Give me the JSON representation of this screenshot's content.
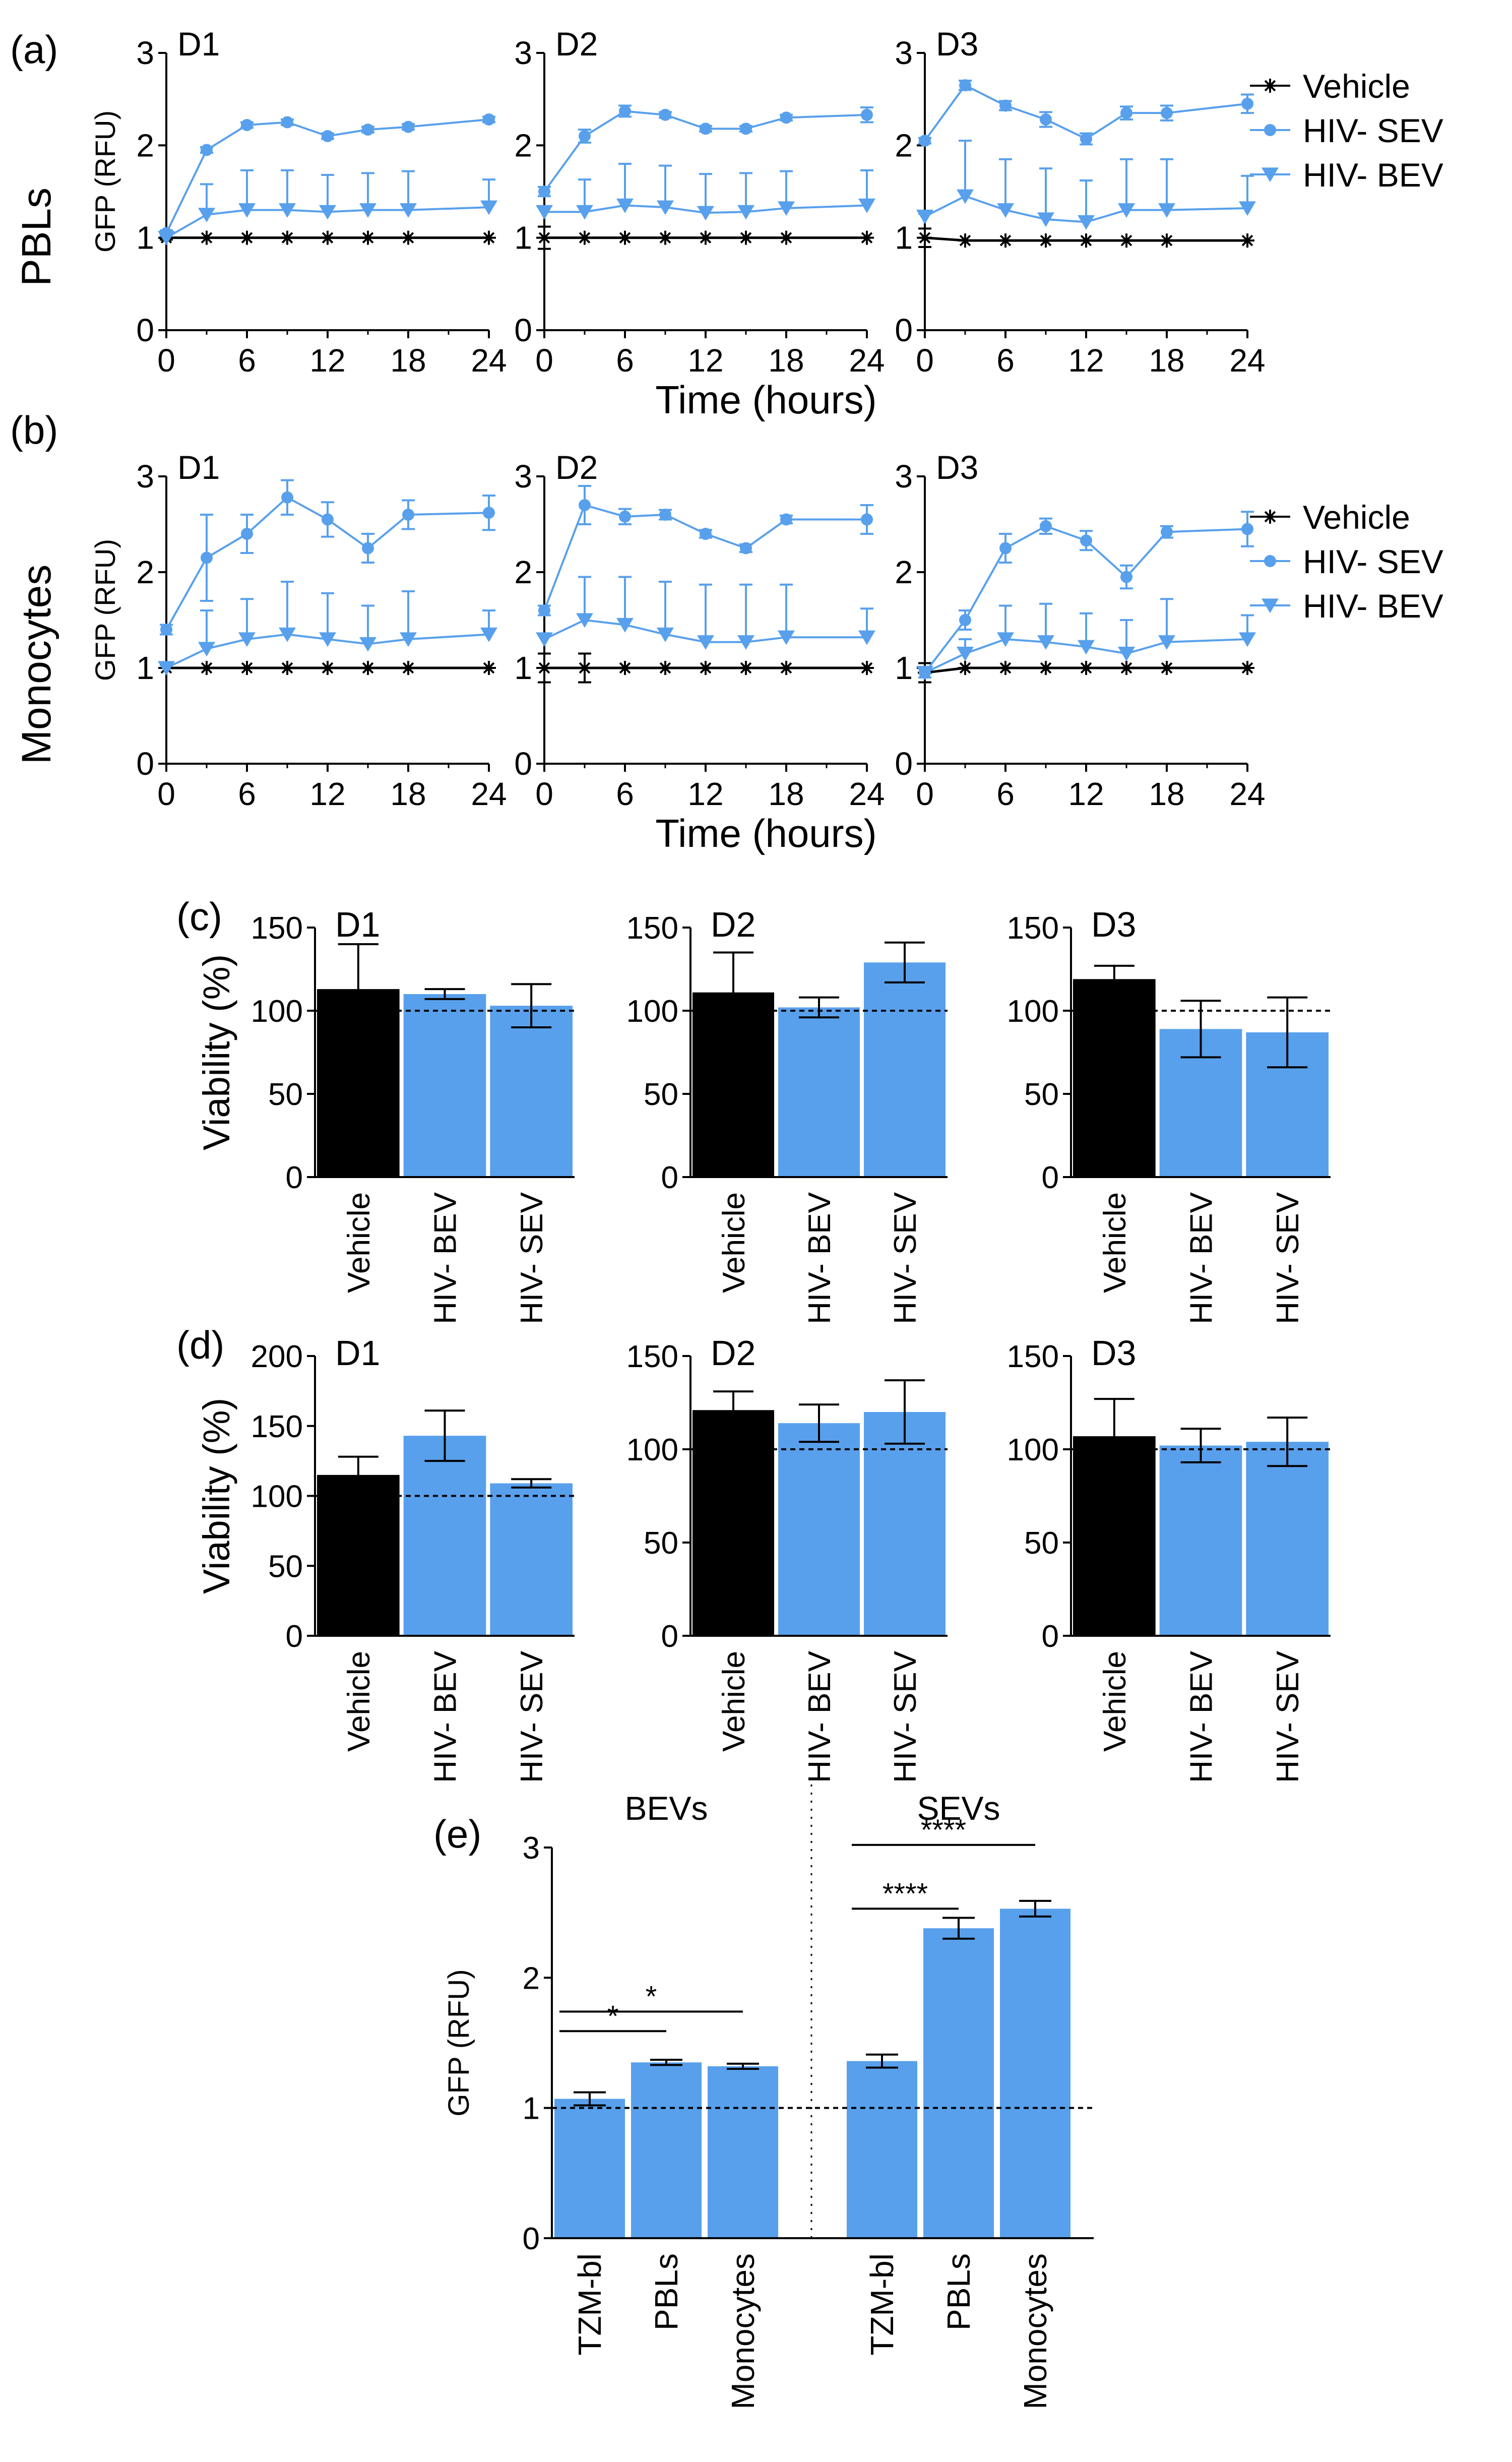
{
  "colors": {
    "vehicle": "#000000",
    "sev": "#58a0ec",
    "bev": "#58a0ec",
    "bar_vehicle": "#000000",
    "bar_ev": "#58a0ec"
  },
  "panels": {
    "a": {
      "letter": "(a)",
      "row_label": "PBLs"
    },
    "b": {
      "letter": "(b)",
      "row_label": "Monocytes"
    },
    "c": {
      "letter": "(c)"
    },
    "d": {
      "letter": "(d)"
    },
    "e": {
      "letter": "(e)"
    }
  },
  "legend": [
    "Vehicle",
    "HIV- SEV",
    "HIV- BEV"
  ],
  "chart_data": [
    {
      "id": "a",
      "type": "line",
      "row_label": "PBLs",
      "ylabel": "GFP (RFU)",
      "xlabel": "Time (hours)",
      "ylim": [
        0,
        3
      ],
      "yticks": [
        0,
        1,
        2,
        3
      ],
      "xlim": [
        0,
        24
      ],
      "xticks": [
        0,
        6,
        12,
        18,
        24
      ],
      "legend": "right",
      "subplots": [
        {
          "title": "D1",
          "series": [
            {
              "name": "Vehicle",
              "marker": "asterisk",
              "x": [
                0,
                3,
                6,
                9,
                12,
                15,
                18,
                24
              ],
              "y": [
                1.0,
                1.0,
                1.0,
                1.0,
                1.0,
                1.0,
                1.0,
                1.0
              ],
              "err": [
                0.02,
                0,
                0,
                0,
                0,
                0,
                0,
                0
              ]
            },
            {
              "name": "HIV- SEV",
              "marker": "circle",
              "x": [
                0,
                3,
                6,
                9,
                12,
                15,
                18,
                24
              ],
              "y": [
                1.05,
                1.95,
                2.22,
                2.25,
                2.1,
                2.17,
                2.2,
                2.28
              ],
              "err": [
                0.03,
                0.03,
                0.03,
                0.03,
                0.03,
                0.03,
                0.03,
                0.03
              ]
            },
            {
              "name": "HIV- BEV",
              "marker": "triangle",
              "x": [
                0,
                3,
                6,
                9,
                12,
                15,
                18,
                24
              ],
              "y": [
                1.0,
                1.25,
                1.3,
                1.3,
                1.28,
                1.3,
                1.3,
                1.33
              ],
              "err": [
                0.05,
                0.33,
                0.43,
                0.43,
                0.4,
                0.4,
                0.42,
                0.3
              ]
            }
          ]
        },
        {
          "title": "D2",
          "series": [
            {
              "name": "Vehicle",
              "marker": "asterisk",
              "x": [
                0,
                3,
                6,
                9,
                12,
                15,
                18,
                24
              ],
              "y": [
                1.0,
                1.0,
                1.0,
                1.0,
                1.0,
                1.0,
                1.0,
                1.0
              ],
              "err": [
                0.12,
                0,
                0,
                0,
                0,
                0,
                0,
                0
              ]
            },
            {
              "name": "HIV- SEV",
              "marker": "circle",
              "x": [
                0,
                3,
                6,
                9,
                12,
                15,
                18,
                24
              ],
              "y": [
                1.5,
                2.1,
                2.37,
                2.33,
                2.18,
                2.18,
                2.3,
                2.33
              ],
              "err": [
                0.05,
                0.07,
                0.06,
                0.03,
                0.03,
                0.03,
                0.03,
                0.08
              ]
            },
            {
              "name": "HIV- BEV",
              "marker": "triangle",
              "x": [
                0,
                3,
                6,
                9,
                12,
                15,
                18,
                24
              ],
              "y": [
                1.28,
                1.28,
                1.35,
                1.33,
                1.27,
                1.28,
                1.32,
                1.35
              ],
              "err": [
                0.05,
                0.35,
                0.45,
                0.45,
                0.42,
                0.42,
                0.4,
                0.38
              ]
            }
          ]
        },
        {
          "title": "D3",
          "series": [
            {
              "name": "Vehicle",
              "marker": "asterisk",
              "x": [
                0,
                3,
                6,
                9,
                12,
                15,
                18,
                24
              ],
              "y": [
                1.0,
                0.97,
                0.97,
                0.97,
                0.97,
                0.97,
                0.97,
                0.97
              ],
              "err": [
                0.1,
                0,
                0,
                0,
                0,
                0,
                0,
                0
              ]
            },
            {
              "name": "HIV- SEV",
              "marker": "circle",
              "x": [
                0,
                3,
                6,
                9,
                12,
                15,
                18,
                24
              ],
              "y": [
                2.05,
                2.65,
                2.43,
                2.28,
                2.07,
                2.35,
                2.35,
                2.45
              ],
              "err": [
                0.03,
                0.05,
                0.05,
                0.08,
                0.06,
                0.07,
                0.08,
                0.1
              ]
            },
            {
              "name": "HIV- BEV",
              "marker": "triangle",
              "x": [
                0,
                3,
                6,
                9,
                12,
                15,
                18,
                24
              ],
              "y": [
                1.23,
                1.45,
                1.3,
                1.2,
                1.17,
                1.3,
                1.3,
                1.32
              ],
              "err": [
                0.03,
                0.6,
                0.55,
                0.55,
                0.45,
                0.55,
                0.55,
                0.35
              ]
            }
          ]
        }
      ]
    },
    {
      "id": "b",
      "type": "line",
      "row_label": "Monocytes",
      "ylabel": "GFP (RFU)",
      "xlabel": "Time (hours)",
      "ylim": [
        0,
        3
      ],
      "yticks": [
        0,
        1,
        2,
        3
      ],
      "xlim": [
        0,
        24
      ],
      "xticks": [
        0,
        6,
        12,
        18,
        24
      ],
      "legend": "right",
      "subplots": [
        {
          "title": "D1",
          "series": [
            {
              "name": "Vehicle",
              "marker": "asterisk",
              "x": [
                0,
                3,
                6,
                9,
                12,
                15,
                18,
                24
              ],
              "y": [
                1.0,
                1.0,
                1.0,
                1.0,
                1.0,
                1.0,
                1.0,
                1.0
              ],
              "err": [
                0,
                0,
                0,
                0,
                0,
                0,
                0,
                0
              ]
            },
            {
              "name": "HIV- SEV",
              "marker": "circle",
              "x": [
                0,
                3,
                6,
                9,
                12,
                15,
                18,
                24
              ],
              "y": [
                1.4,
                2.15,
                2.4,
                2.78,
                2.55,
                2.25,
                2.6,
                2.62
              ],
              "err": [
                0.05,
                0.45,
                0.2,
                0.18,
                0.18,
                0.15,
                0.15,
                0.18
              ]
            },
            {
              "name": "HIV- BEV",
              "marker": "triangle",
              "x": [
                0,
                3,
                6,
                9,
                12,
                15,
                18,
                24
              ],
              "y": [
                1.0,
                1.2,
                1.3,
                1.35,
                1.3,
                1.25,
                1.3,
                1.35
              ],
              "err": [
                0.03,
                0.4,
                0.42,
                0.55,
                0.48,
                0.4,
                0.5,
                0.25
              ]
            }
          ]
        },
        {
          "title": "D2",
          "series": [
            {
              "name": "Vehicle",
              "marker": "asterisk",
              "x": [
                0,
                3,
                6,
                9,
                12,
                15,
                18,
                24
              ],
              "y": [
                1.0,
                1.0,
                1.0,
                1.0,
                1.0,
                1.0,
                1.0,
                1.0
              ],
              "err": [
                0.15,
                0.15,
                0,
                0,
                0,
                0,
                0,
                0
              ]
            },
            {
              "name": "HIV- SEV",
              "marker": "circle",
              "x": [
                0,
                3,
                6,
                9,
                12,
                15,
                18,
                24
              ],
              "y": [
                1.6,
                2.7,
                2.58,
                2.6,
                2.4,
                2.25,
                2.55,
                2.55
              ],
              "err": [
                0.05,
                0.2,
                0.08,
                0.05,
                0.04,
                0.04,
                0.04,
                0.15
              ]
            },
            {
              "name": "HIV- BEV",
              "marker": "triangle",
              "x": [
                0,
                3,
                6,
                9,
                12,
                15,
                18,
                24
              ],
              "y": [
                1.3,
                1.5,
                1.45,
                1.35,
                1.27,
                1.27,
                1.32,
                1.32
              ],
              "err": [
                0.05,
                0.45,
                0.5,
                0.55,
                0.6,
                0.6,
                0.55,
                0.3
              ]
            }
          ]
        },
        {
          "title": "D3",
          "series": [
            {
              "name": "Vehicle",
              "marker": "asterisk",
              "x": [
                0,
                3,
                6,
                9,
                12,
                15,
                18,
                24
              ],
              "y": [
                0.95,
                1.0,
                1.0,
                1.0,
                1.0,
                1.0,
                1.0,
                1.0
              ],
              "err": [
                0.1,
                0,
                0,
                0,
                0,
                0,
                0,
                0
              ]
            },
            {
              "name": "HIV- SEV",
              "marker": "circle",
              "x": [
                0,
                3,
                6,
                9,
                12,
                15,
                18,
                24
              ],
              "y": [
                0.95,
                1.5,
                2.25,
                2.48,
                2.33,
                1.95,
                2.42,
                2.45
              ],
              "err": [
                0.05,
                0.1,
                0.15,
                0.08,
                0.1,
                0.12,
                0.06,
                0.18
              ]
            },
            {
              "name": "HIV- BEV",
              "marker": "triangle",
              "x": [
                0,
                3,
                6,
                9,
                12,
                15,
                18,
                24
              ],
              "y": [
                0.95,
                1.15,
                1.3,
                1.27,
                1.22,
                1.15,
                1.27,
                1.3
              ],
              "err": [
                0.05,
                0.15,
                0.35,
                0.4,
                0.35,
                0.35,
                0.45,
                0.25
              ]
            }
          ]
        }
      ]
    },
    {
      "id": "c",
      "type": "bar",
      "ylabel": "Viability (%)",
      "categories": [
        "Vehicle",
        "HIV- BEV",
        "HIV- SEV"
      ],
      "reference_line": 100,
      "subplots": [
        {
          "title": "D1",
          "ylim": [
            0,
            150
          ],
          "yticks": [
            0,
            50,
            100,
            150
          ],
          "values": [
            113,
            110,
            103
          ],
          "err": [
            27,
            3,
            13
          ]
        },
        {
          "title": "D2",
          "ylim": [
            0,
            150
          ],
          "yticks": [
            0,
            50,
            100,
            150
          ],
          "values": [
            111,
            102,
            129
          ],
          "err": [
            24,
            6,
            12
          ]
        },
        {
          "title": "D3",
          "ylim": [
            0,
            150
          ],
          "yticks": [
            0,
            50,
            100,
            150
          ],
          "values": [
            119,
            89,
            87
          ],
          "err": [
            8,
            17,
            21
          ]
        }
      ]
    },
    {
      "id": "d",
      "type": "bar",
      "ylabel": "Viability (%)",
      "categories": [
        "Vehicle",
        "HIV- BEV",
        "HIV- SEV"
      ],
      "reference_line": 100,
      "subplots": [
        {
          "title": "D1",
          "ylim": [
            0,
            200
          ],
          "yticks": [
            0,
            50,
            100,
            150,
            200
          ],
          "values": [
            115,
            143,
            109
          ],
          "err": [
            13,
            18,
            3
          ]
        },
        {
          "title": "D2",
          "ylim": [
            0,
            150
          ],
          "yticks": [
            0,
            50,
            100,
            150
          ],
          "values": [
            121,
            114,
            120
          ],
          "err": [
            10,
            10,
            17
          ]
        },
        {
          "title": "D3",
          "ylim": [
            0,
            150
          ],
          "yticks": [
            0,
            50,
            100,
            150
          ],
          "values": [
            107,
            102,
            104
          ],
          "err": [
            20,
            9,
            13
          ]
        }
      ]
    },
    {
      "id": "e",
      "type": "bar",
      "ylabel": "GFP (RFU)",
      "ylim": [
        0,
        3
      ],
      "yticks": [
        0,
        1,
        2,
        3
      ],
      "reference_line": 1,
      "groups": [
        {
          "label": "BEVs",
          "categories": [
            "TZM-bl",
            "PBLs",
            "Monocytes"
          ],
          "values": [
            1.07,
            1.35,
            1.32
          ],
          "err": [
            0.05,
            0.02,
            0.02
          ]
        },
        {
          "label": "SEVs",
          "categories": [
            "TZM-bl",
            "PBLs",
            "Monocytes"
          ],
          "values": [
            1.36,
            2.38,
            2.53
          ],
          "err": [
            0.05,
            0.08,
            0.06
          ]
        }
      ],
      "significance": [
        {
          "group": 0,
          "from": 0,
          "to": 1,
          "label": "*"
        },
        {
          "group": 0,
          "from": 0,
          "to": 2,
          "label": "*"
        },
        {
          "group": 1,
          "from": 0,
          "to": 1,
          "label": "****"
        },
        {
          "group": 1,
          "from": 0,
          "to": 2,
          "label": "****"
        }
      ]
    }
  ]
}
